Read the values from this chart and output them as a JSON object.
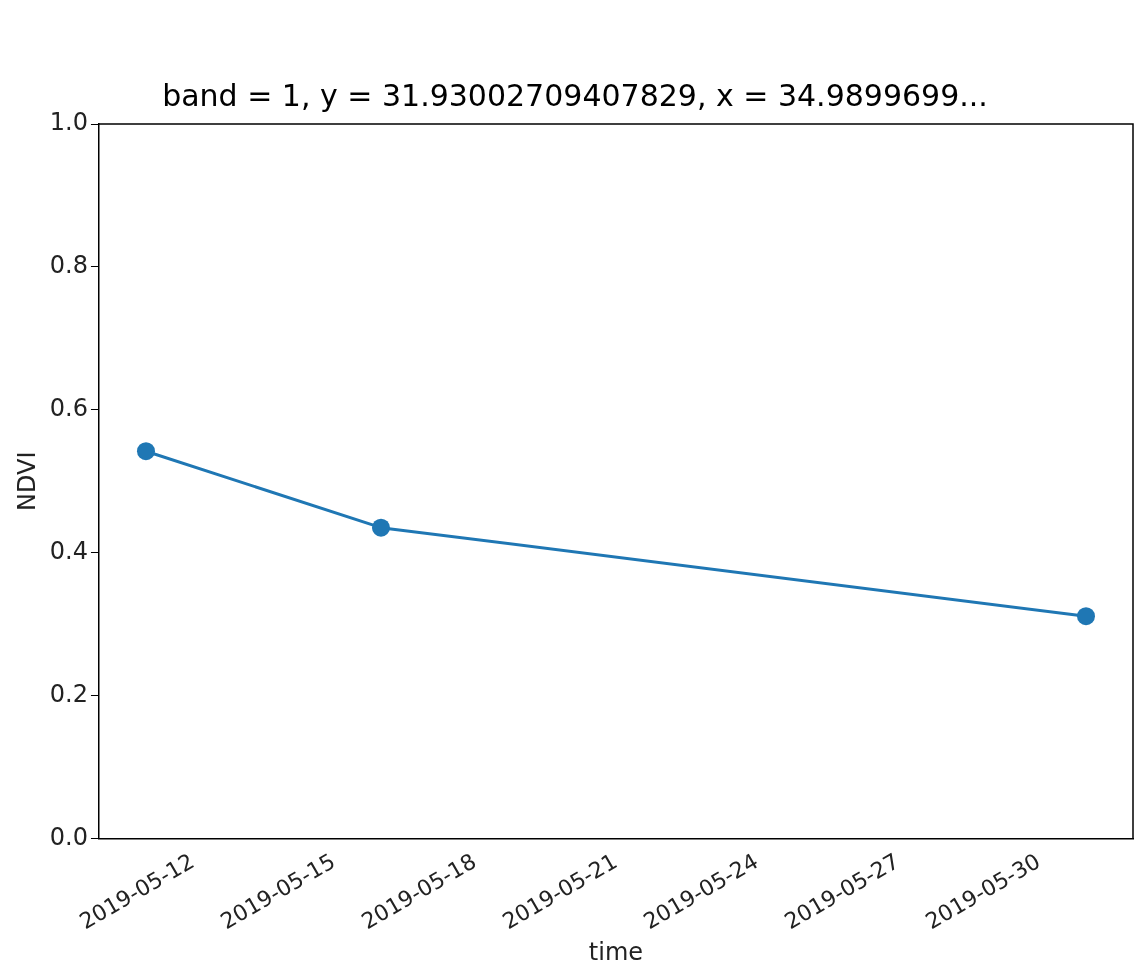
{
  "chart_data": {
    "type": "line",
    "title": "band = 1, y = 31.93002709407829, x = 34.9899699...",
    "xlabel": "time",
    "ylabel": "NDVI",
    "x": [
      "2019-05-11",
      "2019-05-16",
      "2019-05-31"
    ],
    "series": [
      {
        "color": "#1f77b4",
        "values": [
          0.542,
          0.435,
          0.311
        ]
      }
    ],
    "xlim": [
      "2019-05-10",
      "2019-06-01"
    ],
    "xticks": [
      "2019-05-12",
      "2019-05-15",
      "2019-05-18",
      "2019-05-21",
      "2019-05-24",
      "2019-05-27",
      "2019-05-30"
    ],
    "ylim": [
      0,
      1
    ],
    "yticks": [
      {
        "value": 0,
        "label": "0.0"
      },
      0.2,
      0.4,
      0.6,
      0.8,
      {
        "value": 1,
        "label": "1.0"
      }
    ],
    "grid": false,
    "legend": false,
    "marker": "circle",
    "line_style": "solid"
  }
}
